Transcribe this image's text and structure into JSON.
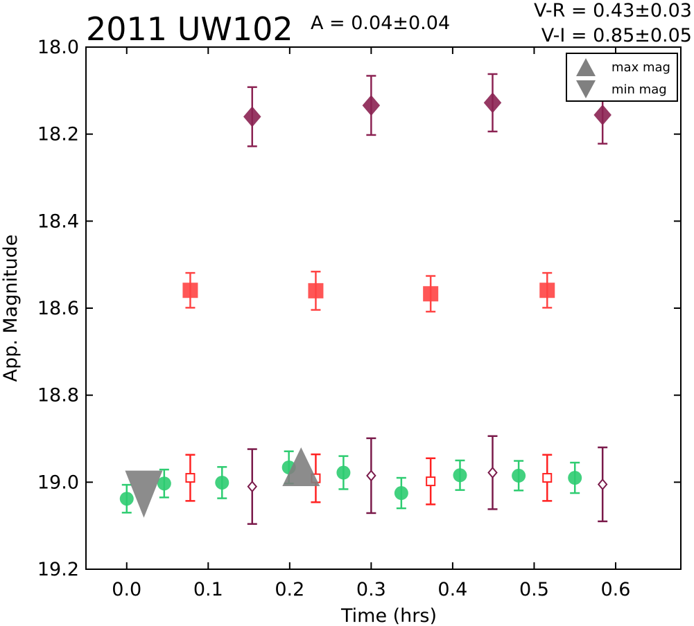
{
  "chart_data": {
    "type": "scatter",
    "title": "2011 UW102",
    "annotations": {
      "amplitude": "A  = 0.04±0.04",
      "vr": "V-R = 0.43±0.03",
      "vi": "V-I  = 0.85±0.05"
    },
    "xlabel": "Time (hrs)",
    "ylabel": "App. Magnitude",
    "xlim": [
      -0.05,
      0.68
    ],
    "ylim": [
      19.2,
      18.0
    ],
    "y_inverted": true,
    "xticks": [
      "0.0",
      "0.1",
      "0.2",
      "0.3",
      "0.4",
      "0.5",
      "0.6"
    ],
    "yticks": [
      "18.0",
      "18.2",
      "18.4",
      "18.6",
      "18.8",
      "19.0",
      "19.2"
    ],
    "grid": false,
    "legend": {
      "position": "top-right",
      "entries": [
        {
          "label": "max mag",
          "marker": "triangle-up"
        },
        {
          "label": "min mag",
          "marker": "triangle-down"
        }
      ]
    },
    "series": [
      {
        "marker": "circle",
        "filled": true,
        "color": "#2ecc71",
        "points": [
          {
            "x": 0.0,
            "y": 19.038,
            "err": 0.032
          },
          {
            "x": 0.046,
            "y": 19.003,
            "err": 0.032
          },
          {
            "x": 0.117,
            "y": 19.001,
            "err": 0.036
          },
          {
            "x": 0.199,
            "y": 18.966,
            "err": 0.037
          },
          {
            "x": 0.266,
            "y": 18.978,
            "err": 0.038
          },
          {
            "x": 0.337,
            "y": 19.025,
            "err": 0.035
          },
          {
            "x": 0.409,
            "y": 18.984,
            "err": 0.034
          },
          {
            "x": 0.481,
            "y": 18.985,
            "err": 0.034
          },
          {
            "x": 0.55,
            "y": 18.99,
            "err": 0.035
          }
        ]
      },
      {
        "marker": "square",
        "filled": true,
        "color": "#ff4444",
        "points": [
          {
            "x": 0.078,
            "y": 18.559,
            "err": 0.04
          },
          {
            "x": 0.232,
            "y": 18.56,
            "err": 0.044
          },
          {
            "x": 0.373,
            "y": 18.567,
            "err": 0.041
          },
          {
            "x": 0.516,
            "y": 18.559,
            "err": 0.04
          }
        ]
      },
      {
        "marker": "diamond",
        "filled": true,
        "color": "#8b2252",
        "points": [
          {
            "x": 0.154,
            "y": 18.16,
            "err": 0.068
          },
          {
            "x": 0.3,
            "y": 18.134,
            "err": 0.068
          },
          {
            "x": 0.449,
            "y": 18.128,
            "err": 0.066
          },
          {
            "x": 0.584,
            "y": 18.156,
            "err": 0.066
          }
        ]
      },
      {
        "marker": "square",
        "filled": false,
        "color": "#ff2222",
        "points": [
          {
            "x": 0.078,
            "y": 18.99,
            "err": 0.053
          },
          {
            "x": 0.232,
            "y": 18.991,
            "err": 0.055
          },
          {
            "x": 0.373,
            "y": 18.998,
            "err": 0.053
          },
          {
            "x": 0.516,
            "y": 18.99,
            "err": 0.053
          }
        ]
      },
      {
        "marker": "diamond",
        "filled": false,
        "color": "#7a1a4a",
        "points": [
          {
            "x": 0.154,
            "y": 19.01,
            "err": 0.086
          },
          {
            "x": 0.3,
            "y": 18.985,
            "err": 0.086
          },
          {
            "x": 0.449,
            "y": 18.978,
            "err": 0.084
          },
          {
            "x": 0.584,
            "y": 19.005,
            "err": 0.085
          }
        ]
      },
      {
        "marker": "triangle-up",
        "filled": true,
        "color": "#808080",
        "points": [
          {
            "x": 0.214,
            "y": 18.99
          }
        ]
      },
      {
        "marker": "triangle-down",
        "filled": true,
        "color": "#808080",
        "points": [
          {
            "x": 0.021,
            "y": 19.018
          }
        ]
      }
    ]
  }
}
